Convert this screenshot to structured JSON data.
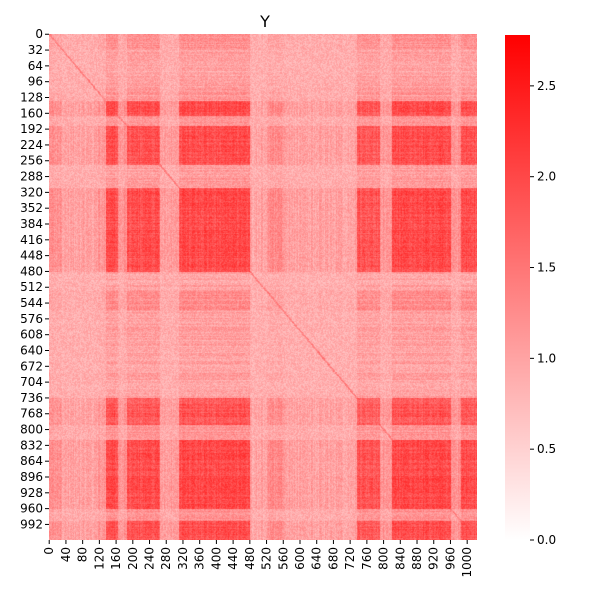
{
  "chart_data": {
    "type": "heatmap",
    "title": "Y",
    "xlabel": "",
    "ylabel": "",
    "n": 1024,
    "x_ticks": [
      0,
      40,
      80,
      120,
      160,
      200,
      240,
      280,
      320,
      360,
      400,
      440,
      480,
      520,
      560,
      600,
      640,
      680,
      720,
      760,
      800,
      840,
      880,
      920,
      960,
      1000
    ],
    "y_ticks": [
      0,
      32,
      64,
      96,
      128,
      160,
      192,
      224,
      256,
      288,
      320,
      352,
      384,
      416,
      448,
      480,
      512,
      544,
      576,
      608,
      640,
      672,
      704,
      736,
      768,
      800,
      832,
      864,
      896,
      928,
      960,
      992
    ],
    "colorbar": {
      "min": 0.0,
      "max": 2.78,
      "ticks": [
        0.0,
        0.5,
        1.0,
        1.5,
        2.0,
        2.5
      ],
      "tick_labels": [
        "0.0",
        "0.5",
        "1.0",
        "1.5",
        "2.0",
        "2.5"
      ],
      "low_color": "#ffffff",
      "high_color": "#ff0000"
    },
    "block_profile": [
      {
        "start": 0,
        "end": 30,
        "level": 0.3
      },
      {
        "start": 30,
        "end": 110,
        "level": 0.15
      },
      {
        "start": 110,
        "end": 135,
        "level": 0.25
      },
      {
        "start": 135,
        "end": 165,
        "level": 1.0
      },
      {
        "start": 165,
        "end": 185,
        "level": 0.3
      },
      {
        "start": 185,
        "end": 265,
        "level": 0.95
      },
      {
        "start": 265,
        "end": 310,
        "level": 0.2
      },
      {
        "start": 310,
        "end": 480,
        "level": 1.0
      },
      {
        "start": 480,
        "end": 520,
        "level": 0.15
      },
      {
        "start": 520,
        "end": 560,
        "level": 0.35
      },
      {
        "start": 560,
        "end": 735,
        "level": 0.15
      },
      {
        "start": 735,
        "end": 790,
        "level": 0.9
      },
      {
        "start": 790,
        "end": 820,
        "level": 0.3
      },
      {
        "start": 820,
        "end": 960,
        "level": 1.0
      },
      {
        "start": 960,
        "end": 985,
        "level": 0.3
      },
      {
        "start": 985,
        "end": 1024,
        "level": 0.95
      }
    ],
    "diagonal_value": 1.4,
    "background_value": 0.85,
    "peak_value": 2.0
  }
}
